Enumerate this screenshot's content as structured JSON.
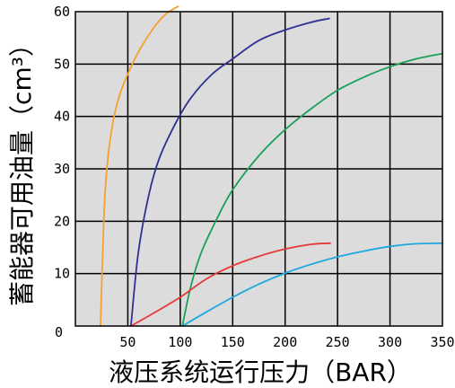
{
  "chart_data": {
    "type": "line",
    "xlabel": "液压系统运行压力（BAR）",
    "ylabel": "蓄能器可用油量（cm³）",
    "xlim": [
      0,
      350
    ],
    "ylim": [
      0,
      60
    ],
    "x_ticks": [
      "0",
      "50",
      "100",
      "150",
      "200",
      "250",
      "300",
      "350"
    ],
    "y_ticks": [
      "0",
      "10",
      "20",
      "30",
      "40",
      "50",
      "60"
    ],
    "grid": true,
    "background": "#dcdcdc",
    "series": [
      {
        "color": "#f5a030",
        "x": [
          24,
          27,
          30,
          35,
          42,
          52,
          62,
          75,
          86,
          98
        ],
        "y": [
          0,
          20,
          30,
          38,
          44,
          49,
          53,
          57,
          59.5,
          61
        ]
      },
      {
        "color": "#2e3192",
        "x": [
          53,
          60,
          70,
          80,
          95,
          110,
          130,
          150,
          175,
          200,
          225,
          242
        ],
        "y": [
          0,
          14,
          25,
          32,
          38.5,
          43.5,
          48,
          51,
          54.5,
          56.5,
          58,
          58.7
        ]
      },
      {
        "color": "#1aa059",
        "x": [
          102,
          110,
          120,
          135,
          150,
          175,
          200,
          225,
          250,
          275,
          300,
          325,
          350
        ],
        "y": [
          0,
          7.5,
          14,
          20.5,
          26,
          32.5,
          37.5,
          41.5,
          45,
          47.5,
          49.5,
          51,
          52
        ]
      },
      {
        "color": "#e63a3a",
        "x": [
          53,
          75,
          100,
          125,
          150,
          175,
          200,
          225,
          243
        ],
        "y": [
          0,
          2.5,
          5.5,
          9,
          11.5,
          13.3,
          14.7,
          15.6,
          15.8
        ]
      },
      {
        "color": "#1ea8e0",
        "x": [
          102,
          125,
          150,
          175,
          200,
          225,
          250,
          275,
          300,
          325,
          350
        ],
        "y": [
          0,
          2.7,
          5.5,
          8,
          10.1,
          11.8,
          13.2,
          14.3,
          15.2,
          15.7,
          15.8
        ]
      }
    ]
  }
}
